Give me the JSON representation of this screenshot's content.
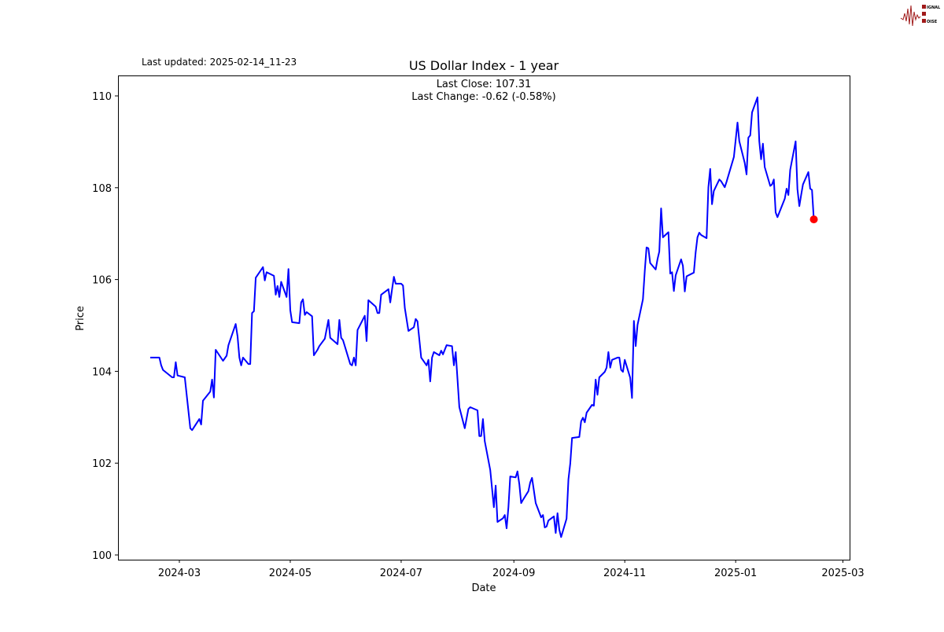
{
  "header": {
    "last_updated": "Last updated: 2025-02-14_11-23",
    "logo_text": "SIGNAL 2 NOISE"
  },
  "chart_data": {
    "type": "line",
    "title": "US Dollar Index - 1 year",
    "xlabel": "Date",
    "ylabel": "Price",
    "annotations": [
      "Last Close: 107.31",
      "Last Change: -0.62 (-0.58%)"
    ],
    "ylim": [
      99.9,
      110.4
    ],
    "xlim": [
      "2024-02-01",
      "2025-03-04"
    ],
    "yticks": [
      100,
      102,
      104,
      106,
      108,
      110
    ],
    "xticks": [
      "2024-03",
      "2024-05",
      "2024-07",
      "2024-09",
      "2024-11",
      "2025-01",
      "2025-03"
    ],
    "grid": false,
    "line_color": "#0000ff",
    "last_point_color": "#ff0000",
    "series": [
      {
        "dates": [
          "2024-02-14",
          "2024-02-19",
          "2024-02-20",
          "2024-02-21",
          "2024-02-26",
          "2024-02-27",
          "2024-02-28",
          "2024-02-29",
          "2024-03-04",
          "2024-03-07",
          "2024-03-08",
          "2024-03-12",
          "2024-03-13",
          "2024-03-14",
          "2024-03-18",
          "2024-03-19",
          "2024-03-20",
          "2024-03-21",
          "2024-03-25",
          "2024-03-27",
          "2024-03-28",
          "2024-04-01",
          "2024-04-02",
          "2024-04-03",
          "2024-04-04",
          "2024-04-05",
          "2024-04-08",
          "2024-04-09",
          "2024-04-10",
          "2024-04-11",
          "2024-04-12",
          "2024-04-16",
          "2024-04-17",
          "2024-04-18",
          "2024-04-22",
          "2024-04-23",
          "2024-04-24",
          "2024-04-25",
          "2024-04-26",
          "2024-04-29",
          "2024-04-30",
          "2024-05-01",
          "2024-05-02",
          "2024-05-06",
          "2024-05-07",
          "2024-05-08",
          "2024-05-09",
          "2024-05-10",
          "2024-05-13",
          "2024-05-14",
          "2024-05-16",
          "2024-05-17",
          "2024-05-20",
          "2024-05-22",
          "2024-05-23",
          "2024-05-27",
          "2024-05-28",
          "2024-05-29",
          "2024-05-30",
          "2024-06-03",
          "2024-06-04",
          "2024-06-05",
          "2024-06-06",
          "2024-06-07",
          "2024-06-11",
          "2024-06-12",
          "2024-06-13",
          "2024-06-17",
          "2024-06-18",
          "2024-06-19",
          "2024-06-20",
          "2024-06-24",
          "2024-06-25",
          "2024-06-26",
          "2024-06-27",
          "2024-06-28",
          "2024-07-01",
          "2024-07-02",
          "2024-07-03",
          "2024-07-05",
          "2024-07-08",
          "2024-07-09",
          "2024-07-10",
          "2024-07-12",
          "2024-07-15",
          "2024-07-16",
          "2024-07-17",
          "2024-07-18",
          "2024-07-19",
          "2024-07-22",
          "2024-07-23",
          "2024-07-24",
          "2024-07-26",
          "2024-07-29",
          "2024-07-30",
          "2024-07-31",
          "2024-08-02",
          "2024-08-05",
          "2024-08-07",
          "2024-08-08",
          "2024-08-12",
          "2024-08-13",
          "2024-08-14",
          "2024-08-15",
          "2024-08-16",
          "2024-08-19",
          "2024-08-21",
          "2024-08-22",
          "2024-08-23",
          "2024-08-26",
          "2024-08-27",
          "2024-08-28",
          "2024-08-29",
          "2024-08-30",
          "2024-09-02",
          "2024-09-03",
          "2024-09-04",
          "2024-09-05",
          "2024-09-06",
          "2024-09-09",
          "2024-09-10",
          "2024-09-11",
          "2024-09-13",
          "2024-09-16",
          "2024-09-17",
          "2024-09-18",
          "2024-09-19",
          "2024-09-20",
          "2024-09-23",
          "2024-09-24",
          "2024-09-25",
          "2024-09-26",
          "2024-09-27",
          "2024-09-30",
          "2024-10-01",
          "2024-10-02",
          "2024-10-03",
          "2024-10-07",
          "2024-10-08",
          "2024-10-09",
          "2024-10-10",
          "2024-10-11",
          "2024-10-14",
          "2024-10-15",
          "2024-10-16",
          "2024-10-17",
          "2024-10-18",
          "2024-10-21",
          "2024-10-22",
          "2024-10-23",
          "2024-10-24",
          "2024-10-25",
          "2024-10-28",
          "2024-10-29",
          "2024-10-30",
          "2024-10-31",
          "2024-11-01",
          "2024-11-04",
          "2024-11-05",
          "2024-11-06",
          "2024-11-07",
          "2024-11-08",
          "2024-11-11",
          "2024-11-12",
          "2024-11-13",
          "2024-11-14",
          "2024-11-15",
          "2024-11-18",
          "2024-11-19",
          "2024-11-20",
          "2024-11-21",
          "2024-11-22",
          "2024-11-25",
          "2024-11-26",
          "2024-11-27",
          "2024-11-28",
          "2024-11-29",
          "2024-12-02",
          "2024-12-03",
          "2024-12-04",
          "2024-12-05",
          "2024-12-09",
          "2024-12-10",
          "2024-12-11",
          "2024-12-12",
          "2024-12-13",
          "2024-12-16",
          "2024-12-17",
          "2024-12-18",
          "2024-12-19",
          "2024-12-20",
          "2024-12-23",
          "2024-12-24",
          "2024-12-26",
          "2024-12-27",
          "2024-12-31",
          "2025-01-02",
          "2025-01-03",
          "2025-01-06",
          "2025-01-07",
          "2025-01-08",
          "2025-01-09",
          "2025-01-10",
          "2025-01-13",
          "2025-01-14",
          "2025-01-15",
          "2025-01-16",
          "2025-01-17",
          "2025-01-20",
          "2025-01-21",
          "2025-01-22",
          "2025-01-23",
          "2025-01-24",
          "2025-01-28",
          "2025-01-29",
          "2025-01-30",
          "2025-01-31",
          "2025-02-03",
          "2025-02-04",
          "2025-02-05",
          "2025-02-06",
          "2025-02-07",
          "2025-02-10",
          "2025-02-11",
          "2025-02-12",
          "2025-02-13"
        ],
        "values": [
          104.3,
          104.3,
          104.13,
          104.03,
          103.87,
          103.87,
          104.2,
          103.91,
          103.87,
          102.76,
          102.72,
          102.96,
          102.84,
          103.36,
          103.56,
          103.82,
          103.43,
          104.47,
          104.23,
          104.34,
          104.57,
          105.03,
          104.76,
          104.3,
          104.13,
          104.3,
          104.16,
          104.16,
          105.27,
          105.31,
          106.04,
          106.27,
          105.98,
          106.16,
          106.08,
          105.67,
          105.86,
          105.62,
          105.95,
          105.62,
          106.23,
          105.33,
          105.07,
          105.05,
          105.5,
          105.57,
          105.23,
          105.29,
          105.2,
          104.35,
          104.47,
          104.55,
          104.71,
          105.12,
          104.73,
          104.59,
          105.12,
          104.73,
          104.68,
          104.16,
          104.13,
          104.3,
          104.13,
          104.9,
          105.21,
          104.66,
          105.55,
          105.41,
          105.27,
          105.27,
          105.67,
          105.79,
          105.5,
          105.79,
          106.06,
          105.91,
          105.91,
          105.87,
          105.38,
          104.88,
          104.96,
          105.14,
          105.09,
          104.3,
          104.13,
          104.25,
          103.78,
          104.3,
          104.42,
          104.35,
          104.45,
          104.37,
          104.57,
          104.55,
          104.13,
          104.42,
          103.22,
          102.76,
          103.18,
          103.22,
          103.15,
          102.59,
          102.59,
          102.96,
          102.48,
          101.85,
          101.04,
          101.51,
          100.72,
          100.8,
          100.87,
          100.58,
          101.04,
          101.71,
          101.69,
          101.82,
          101.54,
          101.13,
          101.2,
          101.39,
          101.58,
          101.68,
          101.13,
          100.82,
          100.87,
          100.6,
          100.62,
          100.75,
          100.84,
          100.48,
          100.91,
          100.55,
          100.39,
          100.79,
          101.65,
          101.99,
          102.55,
          102.57,
          102.91,
          102.99,
          102.89,
          103.1,
          103.27,
          103.25,
          103.82,
          103.49,
          103.87,
          103.99,
          104.08,
          104.42,
          104.08,
          104.25,
          104.3,
          104.3,
          104.03,
          103.99,
          104.25,
          103.86,
          103.42,
          105.1,
          104.55,
          105.01,
          105.57,
          106.18,
          106.7,
          106.68,
          106.36,
          106.22,
          106.44,
          106.61,
          107.55,
          106.92,
          107.03,
          106.13,
          106.16,
          105.75,
          106.09,
          106.44,
          106.3,
          105.74,
          106.07,
          106.15,
          106.59,
          106.92,
          107.02,
          106.97,
          106.9,
          108.01,
          108.41,
          107.64,
          107.93,
          108.18,
          108.14,
          108.01,
          108.13,
          108.67,
          109.42,
          109.01,
          108.54,
          108.29,
          109.09,
          109.14,
          109.64,
          109.97,
          109.01,
          108.62,
          108.96,
          108.45,
          108.04,
          108.07,
          108.18,
          107.46,
          107.36,
          107.76,
          107.98,
          107.84,
          108.39,
          109.01,
          107.97,
          107.6,
          107.84,
          108.07,
          108.34,
          107.98,
          107.95,
          107.31
        ]
      }
    ]
  }
}
